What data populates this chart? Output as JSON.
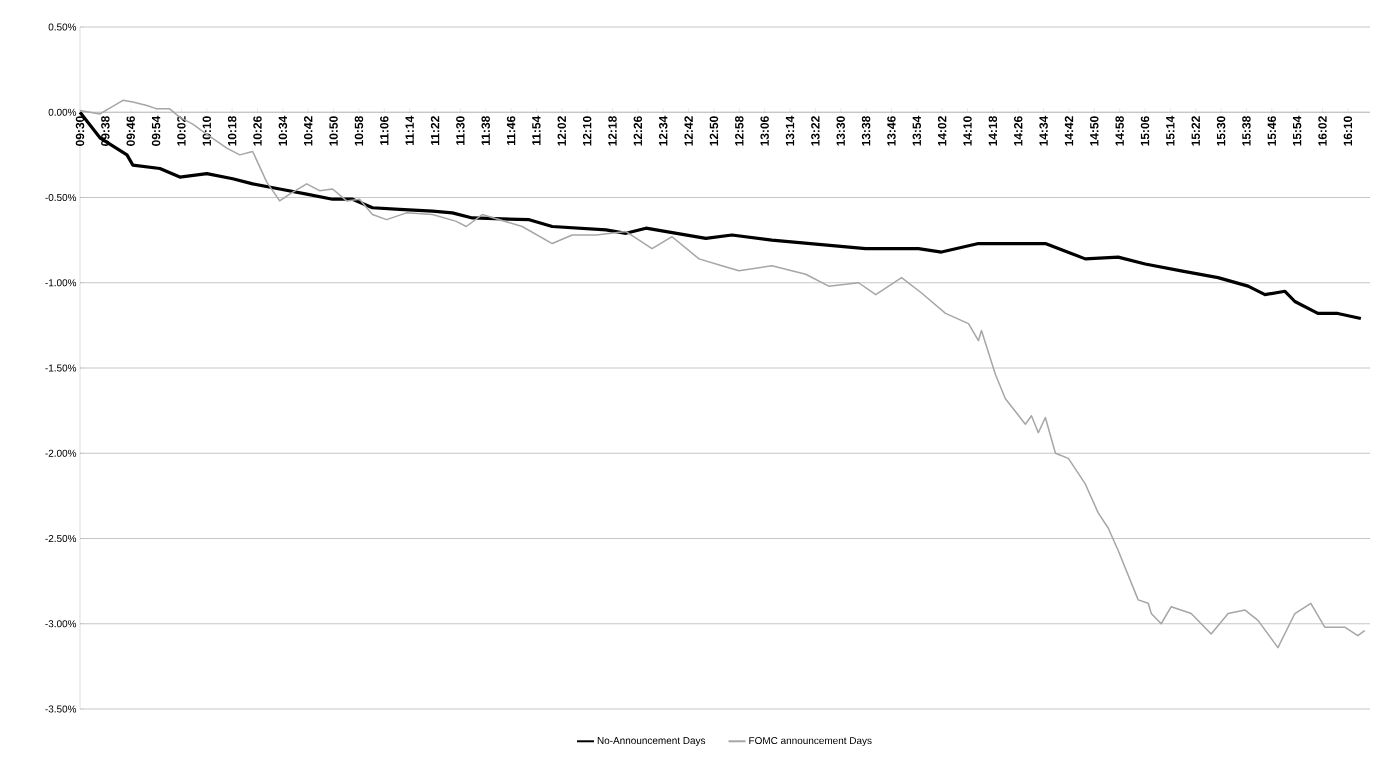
{
  "chart_data": {
    "type": "line",
    "legend": "bottom",
    "grid": "y",
    "marker": "none",
    "xlim": [
      9.5,
      16.283
    ],
    "ylim": [
      -3.5,
      0.5
    ],
    "yticks": [
      {
        "value": 0.5,
        "label": "0.50%"
      },
      {
        "value": 0,
        "label": "0.00%"
      },
      {
        "value": -0.5,
        "label": "-0.50%"
      },
      {
        "value": -1,
        "label": "-1.00%"
      },
      {
        "value": -1.5,
        "label": "-1.50%"
      },
      {
        "value": -2,
        "label": "-2.00%"
      },
      {
        "value": -2.5,
        "label": "-2.50%"
      },
      {
        "value": -3,
        "label": "-3.00%"
      },
      {
        "value": -3.5,
        "label": "-3.50%"
      }
    ],
    "xticks": [
      {
        "value": 9.5,
        "label": "09:30"
      },
      {
        "value": 9.6333,
        "label": "09:38"
      },
      {
        "value": 9.7667,
        "label": "09:46"
      },
      {
        "value": 9.9,
        "label": "09:54"
      },
      {
        "value": 10.0333,
        "label": "10:02"
      },
      {
        "value": 10.1667,
        "label": "10:10"
      },
      {
        "value": 10.3,
        "label": "10:18"
      },
      {
        "value": 10.4333,
        "label": "10:26"
      },
      {
        "value": 10.5667,
        "label": "10:34"
      },
      {
        "value": 10.7,
        "label": "10:42"
      },
      {
        "value": 10.8333,
        "label": "10:50"
      },
      {
        "value": 10.9667,
        "label": "10:58"
      },
      {
        "value": 11.1,
        "label": "11:06"
      },
      {
        "value": 11.2333,
        "label": "11:14"
      },
      {
        "value": 11.3667,
        "label": "11:22"
      },
      {
        "value": 11.5,
        "label": "11:30"
      },
      {
        "value": 11.6333,
        "label": "11:38"
      },
      {
        "value": 11.7667,
        "label": "11:46"
      },
      {
        "value": 11.9,
        "label": "11:54"
      },
      {
        "value": 12.0333,
        "label": "12:02"
      },
      {
        "value": 12.1667,
        "label": "12:10"
      },
      {
        "value": 12.3,
        "label": "12:18"
      },
      {
        "value": 12.4333,
        "label": "12:26"
      },
      {
        "value": 12.5667,
        "label": "12:34"
      },
      {
        "value": 12.7,
        "label": "12:42"
      },
      {
        "value": 12.8333,
        "label": "12:50"
      },
      {
        "value": 12.9667,
        "label": "12:58"
      },
      {
        "value": 13.1,
        "label": "13:06"
      },
      {
        "value": 13.2333,
        "label": "13:14"
      },
      {
        "value": 13.3667,
        "label": "13:22"
      },
      {
        "value": 13.5,
        "label": "13:30"
      },
      {
        "value": 13.6333,
        "label": "13:38"
      },
      {
        "value": 13.7667,
        "label": "13:46"
      },
      {
        "value": 13.9,
        "label": "13:54"
      },
      {
        "value": 14.0333,
        "label": "14:02"
      },
      {
        "value": 14.1667,
        "label": "14:10"
      },
      {
        "value": 14.3,
        "label": "14:18"
      },
      {
        "value": 14.4333,
        "label": "14:26"
      },
      {
        "value": 14.5667,
        "label": "14:34"
      },
      {
        "value": 14.7,
        "label": "14:42"
      },
      {
        "value": 14.8333,
        "label": "14:50"
      },
      {
        "value": 14.9667,
        "label": "14:58"
      },
      {
        "value": 15.1,
        "label": "15:06"
      },
      {
        "value": 15.2333,
        "label": "15:14"
      },
      {
        "value": 15.3667,
        "label": "15:22"
      },
      {
        "value": 15.5,
        "label": "15:30"
      },
      {
        "value": 15.6333,
        "label": "15:38"
      },
      {
        "value": 15.7667,
        "label": "15:46"
      },
      {
        "value": 15.9,
        "label": "15:54"
      },
      {
        "value": 16.0333,
        "label": "16:02"
      },
      {
        "value": 16.1667,
        "label": "16:10"
      }
    ],
    "series": [
      {
        "name": "No-Announcement Days",
        "color": "#000000",
        "x": [
          9.5,
          9.605,
          9.747,
          9.778,
          9.92,
          10.025,
          10.167,
          10.303,
          10.408,
          10.55,
          10.692,
          10.828,
          10.933,
          11.038,
          11.18,
          11.353,
          11.458,
          11.563,
          11.862,
          11.983,
          12.266,
          12.371,
          12.476,
          12.791,
          12.928,
          13.138,
          13.631,
          13.909,
          14.03,
          14.224,
          14.576,
          14.786,
          14.959,
          15.101,
          15.29,
          15.484,
          15.642,
          15.731,
          15.836,
          15.888,
          16.009,
          16.114,
          16.235
        ],
        "values": [
          0,
          -0.15,
          -0.25,
          -0.31,
          -0.33,
          -0.38,
          -0.36,
          -0.39,
          -0.42,
          -0.45,
          -0.48,
          -0.51,
          -0.51,
          -0.56,
          -0.57,
          -0.58,
          -0.59,
          -0.62,
          -0.63,
          -0.67,
          -0.69,
          -0.71,
          -0.68,
          -0.74,
          -0.72,
          -0.75,
          -0.8,
          -0.8,
          -0.82,
          -0.77,
          -0.77,
          -0.86,
          -0.85,
          -0.89,
          -0.93,
          -0.97,
          -1.02,
          -1.07,
          -1.05,
          -1.11,
          -1.18,
          -1.18,
          -1.21
        ]
      },
      {
        "name": "FOMC announcement Days",
        "color": "#a6a6a6",
        "x": [
          9.5,
          9.605,
          9.726,
          9.778,
          9.852,
          9.904,
          9.972,
          10.025,
          10.093,
          10.167,
          10.272,
          10.34,
          10.408,
          10.482,
          10.55,
          10.602,
          10.692,
          10.76,
          10.828,
          10.902,
          10.97,
          11.038,
          11.112,
          11.217,
          11.353,
          11.479,
          11.531,
          11.615,
          11.825,
          11.983,
          12.088,
          12.214,
          12.371,
          12.508,
          12.613,
          12.755,
          12.875,
          12.965,
          13.138,
          13.316,
          13.437,
          13.594,
          13.684,
          13.82,
          13.925,
          14.051,
          14.172,
          14.224,
          14.24,
          14.314,
          14.366,
          14.471,
          14.503,
          14.539,
          14.576,
          14.629,
          14.697,
          14.786,
          14.854,
          14.907,
          14.959,
          15.064,
          15.117,
          15.133,
          15.185,
          15.238,
          15.343,
          15.448,
          15.537,
          15.626,
          15.694,
          15.799,
          15.888,
          15.972,
          16.045,
          16.15,
          16.219,
          16.255
        ],
        "values": [
          0.01,
          -0.01,
          0.07,
          0.06,
          0.04,
          0.02,
          0.02,
          -0.03,
          -0.07,
          -0.13,
          -0.21,
          -0.25,
          -0.23,
          -0.41,
          -0.52,
          -0.48,
          -0.42,
          -0.46,
          -0.45,
          -0.52,
          -0.51,
          -0.6,
          -0.63,
          -0.59,
          -0.6,
          -0.64,
          -0.67,
          -0.6,
          -0.67,
          -0.77,
          -0.72,
          -0.72,
          -0.7,
          -0.8,
          -0.73,
          -0.86,
          -0.9,
          -0.93,
          -0.9,
          -0.95,
          -1.02,
          -1.0,
          -1.07,
          -0.97,
          -1.06,
          -1.18,
          -1.24,
          -1.34,
          -1.28,
          -1.54,
          -1.68,
          -1.83,
          -1.78,
          -1.88,
          -1.79,
          -2.0,
          -2.03,
          -2.18,
          -2.35,
          -2.44,
          -2.57,
          -2.86,
          -2.88,
          -2.94,
          -3.0,
          -2.9,
          -2.94,
          -3.06,
          -2.94,
          -2.92,
          -2.98,
          -3.14,
          -2.94,
          -2.88,
          -3.02,
          -3.02,
          -3.07,
          -3.04
        ]
      }
    ]
  }
}
